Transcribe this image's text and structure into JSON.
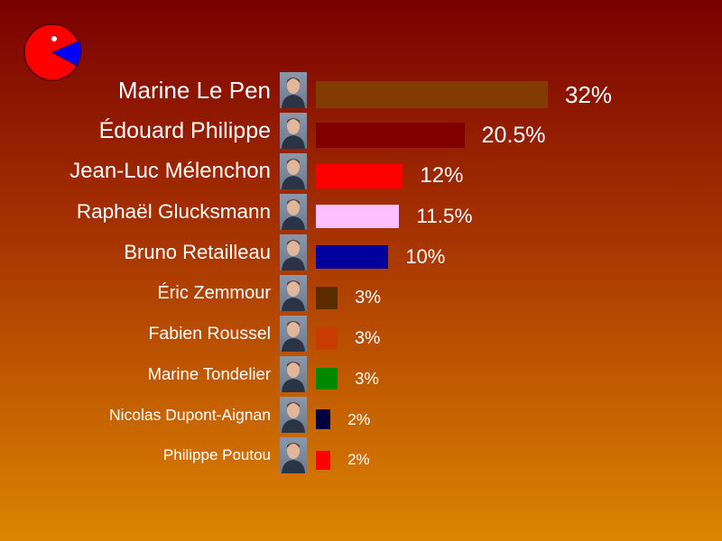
{
  "chart_data": {
    "type": "bar",
    "orientation": "horizontal",
    "title": "",
    "xlabel": "",
    "ylabel": "",
    "xlim": [
      0,
      32
    ],
    "grid": false,
    "legend": "none",
    "categories": [
      "Marine Le Pen",
      "Édouard Philippe",
      "Jean-Luc Mélenchon",
      "Raphaël Glucksmann",
      "Bruno Retailleau",
      "Éric Zemmour",
      "Fabien Roussel",
      "Marine Tondelier",
      "Nicolas Dupont-Aignan",
      "Philippe Poutou"
    ],
    "values": [
      32,
      20.5,
      12,
      11.5,
      10,
      3,
      3,
      3,
      2,
      2
    ],
    "value_labels": [
      "32%",
      "20.5%",
      "12%",
      "11.5%",
      "10%",
      "3%",
      "3%",
      "3%",
      "2%",
      "2%"
    ],
    "colors": [
      "#833c00",
      "#800000",
      "#ff0000",
      "#ffc0ff",
      "#00009c",
      "#5c2c00",
      "#c83c00",
      "#008800",
      "#000040",
      "#ff0000"
    ]
  },
  "icons": {
    "logo": "pie-chart-logo-icon",
    "candidate_photo": "candidate-portrait-icon"
  },
  "colors": {
    "background_top": "#7a0000",
    "background_bottom": "#dc8500",
    "text": "#ffffff",
    "logo_pie": "#ff0000",
    "logo_slice": "#0000ff"
  }
}
